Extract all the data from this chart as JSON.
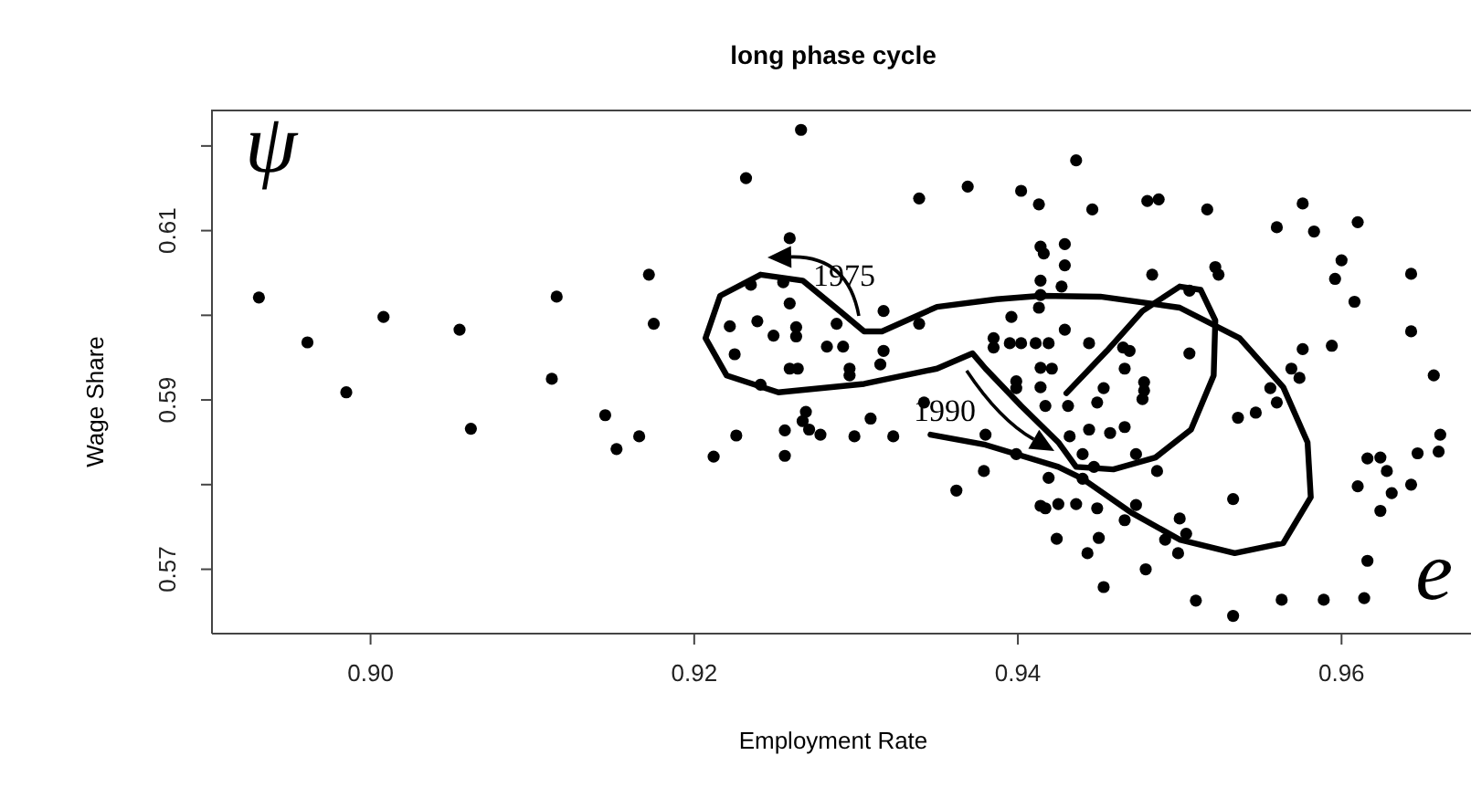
{
  "chart_data": {
    "type": "scatter",
    "title": "long phase cycle",
    "xlabel": "Employment Rate",
    "ylabel": "Wage Share",
    "xlim": [
      0.8902,
      0.968
    ],
    "ylim": [
      0.5624,
      0.6243
    ],
    "xticks": [
      {
        "value": 0.9,
        "label": "0.90"
      },
      0.92,
      0.94,
      0.96
    ],
    "yticks": [
      0.57,
      {
        "value": 0.58,
        "label": null
      },
      0.59,
      {
        "value": 0.6,
        "label": null
      },
      0.61,
      {
        "value": 0.62,
        "label": null
      }
    ],
    "grid": false,
    "legend": false,
    "marker": "circle",
    "series": [
      {
        "type": "scatter",
        "color": "#000000",
        "x": [
          0.8931,
          0.8961,
          0.8985,
          0.9008,
          0.9055,
          0.9062,
          0.9115,
          0.9112,
          0.9145,
          0.9152,
          0.9166,
          0.9266,
          0.9232,
          0.9339,
          0.9369,
          0.9402,
          0.9413,
          0.9259,
          0.9172,
          0.9175,
          0.9235,
          0.9255,
          0.9259,
          0.9222,
          0.9239,
          0.9249,
          0.9263,
          0.9263,
          0.9225,
          0.9317,
          0.9288,
          0.9282,
          0.9292,
          0.9317,
          0.9315,
          0.9259,
          0.9264,
          0.9296,
          0.9296,
          0.9241,
          0.9339,
          0.9396,
          0.9413,
          0.9414,
          0.9414,
          0.9416,
          0.9414,
          0.9385,
          0.9385,
          0.9395,
          0.9402,
          0.9411,
          0.9419,
          0.9414,
          0.9399,
          0.9399,
          0.9414,
          0.9421,
          0.9269,
          0.9267,
          0.9271,
          0.9278,
          0.9256,
          0.9226,
          0.9212,
          0.9256,
          0.9299,
          0.9309,
          0.9323,
          0.9342,
          0.938,
          0.9379,
          0.9362,
          0.9399,
          0.9417,
          0.9424,
          0.9417,
          0.9436,
          0.9446,
          0.948,
          0.9487,
          0.9517,
          0.9576,
          0.956,
          0.9583,
          0.961,
          0.96,
          0.9596,
          0.9608,
          0.9643,
          0.9643,
          0.9657,
          0.9483,
          0.9522,
          0.9524,
          0.9429,
          0.9429,
          0.9427,
          0.9506,
          0.9506,
          0.9465,
          0.9469,
          0.9466,
          0.9478,
          0.9478,
          0.9477,
          0.9453,
          0.9449,
          0.9431,
          0.9429,
          0.9444,
          0.9576,
          0.9594,
          0.9569,
          0.9574,
          0.9556,
          0.956,
          0.9536,
          0.9547,
          0.9466,
          0.9457,
          0.9444,
          0.9432,
          0.944,
          0.9447,
          0.9473,
          0.9486,
          0.9533,
          0.9616,
          0.9624,
          0.9628,
          0.961,
          0.9631,
          0.9624,
          0.9643,
          0.9647,
          0.9661,
          0.966,
          0.9414,
          0.9425,
          0.9436,
          0.9449,
          0.9473,
          0.9466,
          0.95,
          0.9504,
          0.9491,
          0.9499,
          0.945,
          0.9443,
          0.9479,
          0.9453,
          0.9616,
          0.951,
          0.9533,
          0.9563,
          0.9589,
          0.9614,
          0.9419,
          0.944
        ],
        "values": [
          0.6021,
          0.5968,
          0.5909,
          0.5998,
          0.5983,
          0.5866,
          0.6022,
          0.5925,
          0.5882,
          0.5842,
          0.5857,
          0.6219,
          0.6162,
          0.6138,
          0.6152,
          0.6147,
          0.6131,
          0.6091,
          0.6048,
          0.599,
          0.6036,
          0.6039,
          0.6014,
          0.5987,
          0.5993,
          0.5976,
          0.5986,
          0.5975,
          0.5954,
          0.6005,
          0.599,
          0.5963,
          0.5963,
          0.5958,
          0.5942,
          0.5937,
          0.5937,
          0.5937,
          0.5929,
          0.5918,
          0.599,
          0.5998,
          0.6009,
          0.6024,
          0.6041,
          0.6073,
          0.6081,
          0.5973,
          0.5962,
          0.5967,
          0.5967,
          0.5967,
          0.5967,
          0.5938,
          0.5922,
          0.5914,
          0.5915,
          0.5937,
          0.5886,
          0.5875,
          0.5865,
          0.5859,
          0.5864,
          0.5858,
          0.5833,
          0.5834,
          0.5857,
          0.5878,
          0.5857,
          0.5897,
          0.5859,
          0.5816,
          0.5793,
          0.5836,
          0.5772,
          0.5736,
          0.5893,
          0.6183,
          0.6125,
          0.6135,
          0.6137,
          0.6125,
          0.6132,
          0.6104,
          0.6099,
          0.611,
          0.6065,
          0.6043,
          0.6016,
          0.6049,
          0.5981,
          0.5929,
          0.6048,
          0.6057,
          0.6048,
          0.6084,
          0.6059,
          0.6034,
          0.6029,
          0.5955,
          0.5962,
          0.5958,
          0.5937,
          0.5921,
          0.5911,
          0.5901,
          0.5914,
          0.5897,
          0.5893,
          0.5983,
          0.5967,
          0.596,
          0.5964,
          0.5937,
          0.5926,
          0.5914,
          0.5897,
          0.5879,
          0.5885,
          0.5868,
          0.5861,
          0.5865,
          0.5857,
          0.5836,
          0.5821,
          0.5836,
          0.5816,
          0.5783,
          0.5831,
          0.5832,
          0.5816,
          0.5798,
          0.579,
          0.5769,
          0.58,
          0.5837,
          0.5859,
          0.5839,
          0.5775,
          0.5777,
          0.5777,
          0.5772,
          0.5776,
          0.5758,
          0.576,
          0.5742,
          0.5735,
          0.5719,
          0.5737,
          0.5719,
          0.57,
          0.5679,
          0.571,
          0.5663,
          0.5645,
          0.5664,
          0.5664,
          0.5666,
          0.5808,
          0.5807
        ]
      },
      {
        "type": "line",
        "color": "#000000",
        "marker": "none",
        "line_style": "solid",
        "x": [
          0.9346,
          0.938,
          0.9425,
          0.944,
          0.947,
          0.95,
          0.9534,
          0.9564,
          0.9581,
          0.9579,
          0.9564,
          0.9537,
          0.95,
          0.9451,
          0.9414,
          0.9387,
          0.935,
          0.9316,
          0.9305,
          0.929,
          0.9267,
          0.9241,
          0.9216,
          0.9207,
          0.922,
          0.9252,
          0.9305,
          0.935,
          0.9372,
          0.938,
          0.9402,
          0.9425,
          0.9436,
          0.9459,
          0.9485,
          0.9507,
          0.9521,
          0.9522,
          0.9513,
          0.95,
          0.9477,
          0.9455,
          0.943
        ],
        "values": [
          0.5859,
          0.5847,
          0.5821,
          0.5807,
          0.5767,
          0.5735,
          0.5719,
          0.5731,
          0.5785,
          0.585,
          0.5915,
          0.5973,
          0.6009,
          0.6022,
          0.6023,
          0.6019,
          0.601,
          0.5981,
          0.5981,
          0.6005,
          0.6041,
          0.6048,
          0.6023,
          0.5973,
          0.5929,
          0.5909,
          0.5919,
          0.5937,
          0.5955,
          0.5937,
          0.5893,
          0.585,
          0.5821,
          0.5818,
          0.5832,
          0.5865,
          0.5929,
          0.5994,
          0.603,
          0.6034,
          0.6005,
          0.5958,
          0.5908
        ]
      }
    ],
    "annotations": [
      "1975",
      "1990",
      "ψ",
      "e"
    ]
  }
}
